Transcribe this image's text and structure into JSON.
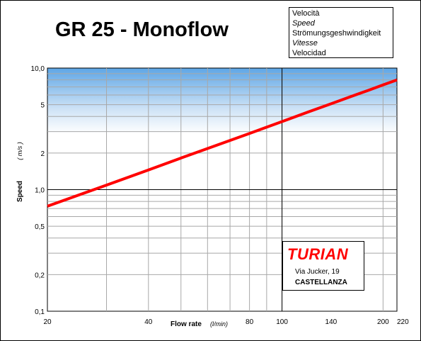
{
  "title": "GR 25 - Monoflow",
  "legend_box": {
    "lines": [
      {
        "text": "Velocità",
        "italic": false
      },
      {
        "text": "Speed",
        "italic": true
      },
      {
        "text": "Strömungsgeshwindigkeit",
        "italic": false
      },
      {
        "text": "Vitesse",
        "italic": true
      },
      {
        "text": "Velocidad",
        "italic": false
      }
    ]
  },
  "brand": {
    "name": "TURIAN",
    "address": "Via Jucker, 19",
    "city": "CASTELLANZA",
    "color": "#ff0000"
  },
  "chart_data": {
    "type": "line",
    "title": "GR 25 - Monoflow",
    "xlabel": "Flow rate",
    "xunit": "(l/min)",
    "ylabel": "Speed",
    "yunit": "( m/s )",
    "xscale": "log",
    "yscale": "log",
    "xlim": [
      20,
      220
    ],
    "ylim": [
      0.1,
      10
    ],
    "x_ticks": [
      {
        "value": 20,
        "label": "20"
      },
      {
        "value": 40,
        "label": "40"
      },
      {
        "value": 80,
        "label": "80"
      },
      {
        "value": 100,
        "label": "100"
      },
      {
        "value": 140,
        "label": "140"
      },
      {
        "value": 200,
        "label": "200"
      },
      {
        "value": 220,
        "label": "220"
      }
    ],
    "y_ticks": [
      {
        "value": 10,
        "label": "10,0"
      },
      {
        "value": 5,
        "label": "5"
      },
      {
        "value": 2,
        "label": "2"
      },
      {
        "value": 1,
        "label": "1,0"
      },
      {
        "value": 0.5,
        "label": "0,5"
      },
      {
        "value": 0.2,
        "label": "0,2"
      },
      {
        "value": 0.1,
        "label": "0,1"
      }
    ],
    "grid": true,
    "series": [
      {
        "color": "#ff0000",
        "x": [
          20,
          30,
          40,
          50,
          60,
          80,
          100,
          120,
          140,
          160,
          180,
          200,
          220
        ],
        "y": [
          0.73,
          1.09,
          1.45,
          1.82,
          2.18,
          2.9,
          3.63,
          4.36,
          5.08,
          5.81,
          6.53,
          7.26,
          7.98
        ]
      }
    ]
  }
}
